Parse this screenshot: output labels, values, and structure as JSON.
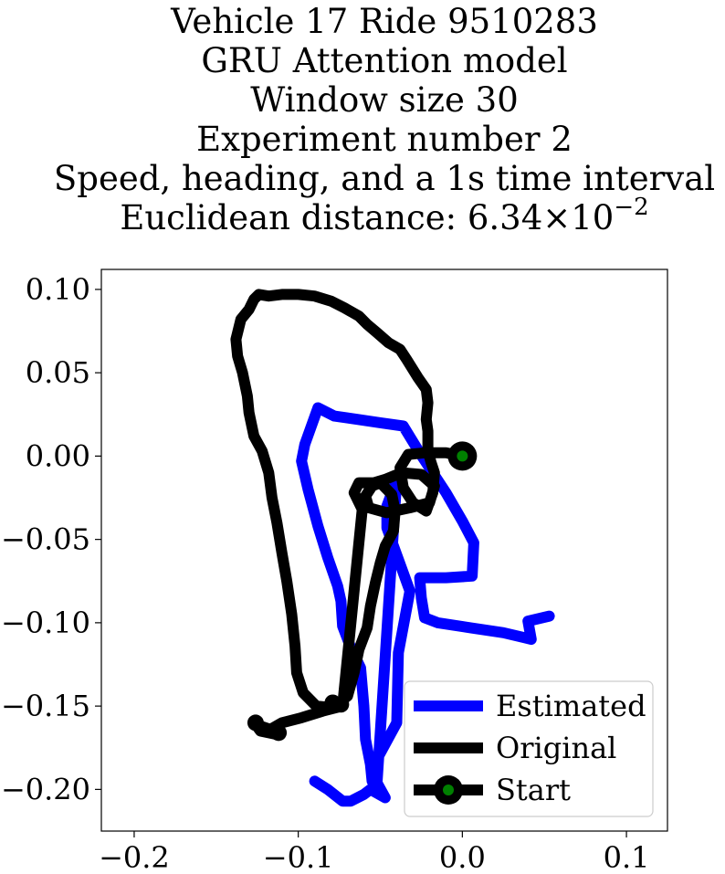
{
  "chart_data": {
    "type": "line",
    "title_lines": [
      "Vehicle 17 Ride 9510283",
      "GRU Attention model",
      "Window size 30",
      "Experiment number 2",
      "Speed, heading, and a 1s time interval"
    ],
    "title_last_prefix": "Euclidean distance: 6.34×10",
    "title_last_exponent": "−2",
    "xlim": [
      -0.22,
      0.125
    ],
    "ylim": [
      -0.225,
      0.112
    ],
    "x_ticks": [
      -0.2,
      -0.1,
      0.0,
      0.1
    ],
    "x_tick_labels": [
      "−0.2",
      "−0.1",
      "0.0",
      "0.1"
    ],
    "y_ticks": [
      0.1,
      0.05,
      0.0,
      -0.05,
      -0.1,
      -0.15,
      -0.2
    ],
    "y_tick_labels": [
      "0.10",
      "0.05",
      "0.00",
      "−0.05",
      "−0.10",
      "−0.15",
      "−0.20"
    ],
    "grid": false,
    "legend_position": "lower-right",
    "series": [
      {
        "name": "Estimated",
        "color": "#0000ff",
        "points": [
          [
            0.053,
            -0.096
          ],
          [
            0.04,
            -0.099
          ],
          [
            0.042,
            -0.11
          ],
          [
            0.038,
            -0.109
          ],
          [
            0.025,
            -0.106
          ],
          [
            0.005,
            -0.103
          ],
          [
            -0.015,
            -0.1
          ],
          [
            -0.023,
            -0.097
          ],
          [
            -0.025,
            -0.085
          ],
          [
            -0.026,
            -0.073
          ],
          [
            -0.01,
            -0.073
          ],
          [
            0.006,
            -0.072
          ],
          [
            0.007,
            -0.052
          ],
          [
            0.0,
            -0.039
          ],
          [
            -0.01,
            -0.022
          ],
          [
            -0.02,
            -0.007
          ],
          [
            -0.026,
            0.002
          ],
          [
            -0.036,
            0.018
          ],
          [
            -0.05,
            0.02
          ],
          [
            -0.064,
            0.022
          ],
          [
            -0.078,
            0.024
          ],
          [
            -0.088,
            0.029
          ],
          [
            -0.092,
            0.018
          ],
          [
            -0.096,
            0.007
          ],
          [
            -0.098,
            -0.003
          ],
          [
            -0.094,
            -0.02
          ],
          [
            -0.088,
            -0.042
          ],
          [
            -0.082,
            -0.061
          ],
          [
            -0.076,
            -0.078
          ],
          [
            -0.074,
            -0.087
          ],
          [
            -0.073,
            -0.102
          ],
          [
            -0.068,
            -0.115
          ],
          [
            -0.062,
            -0.127
          ],
          [
            -0.06,
            -0.15
          ],
          [
            -0.059,
            -0.17
          ],
          [
            -0.056,
            -0.185
          ],
          [
            -0.055,
            -0.195
          ],
          [
            -0.051,
            -0.18
          ],
          [
            -0.04,
            -0.16
          ],
          [
            -0.039,
            -0.118
          ],
          [
            -0.032,
            -0.081
          ],
          [
            -0.039,
            -0.062
          ],
          [
            -0.046,
            -0.043
          ],
          [
            -0.046,
            -0.03
          ],
          [
            -0.04,
            -0.014
          ],
          [
            -0.052,
            -0.196
          ],
          [
            -0.047,
            -0.205
          ],
          [
            -0.056,
            -0.2
          ],
          [
            -0.06,
            -0.203
          ],
          [
            -0.068,
            -0.207
          ],
          [
            -0.073,
            -0.207
          ],
          [
            -0.082,
            -0.2
          ],
          [
            -0.09,
            -0.195
          ]
        ]
      },
      {
        "name": "Original",
        "color": "#000000",
        "points": [
          [
            0.0,
            0.0
          ],
          [
            -0.01,
            0.002
          ],
          [
            -0.022,
            0.002
          ],
          [
            -0.033,
            0.001
          ],
          [
            -0.038,
            -0.007
          ],
          [
            -0.036,
            -0.019
          ],
          [
            -0.03,
            -0.028
          ],
          [
            -0.022,
            -0.033
          ],
          [
            -0.018,
            -0.022
          ],
          [
            -0.017,
            -0.01
          ],
          [
            -0.019,
            -0.004
          ],
          [
            -0.021,
            0.003
          ],
          [
            -0.021,
            0.015
          ],
          [
            -0.022,
            0.022
          ],
          [
            -0.021,
            0.032
          ],
          [
            -0.022,
            0.04
          ],
          [
            -0.027,
            0.047
          ],
          [
            -0.034,
            0.058
          ],
          [
            -0.038,
            0.064
          ],
          [
            -0.045,
            0.068
          ],
          [
            -0.052,
            0.074
          ],
          [
            -0.058,
            0.079
          ],
          [
            -0.063,
            0.084
          ],
          [
            -0.072,
            0.089
          ],
          [
            -0.08,
            0.093
          ],
          [
            -0.09,
            0.096
          ],
          [
            -0.1,
            0.097
          ],
          [
            -0.11,
            0.097
          ],
          [
            -0.118,
            0.096
          ],
          [
            -0.124,
            0.097
          ],
          [
            -0.127,
            0.094
          ],
          [
            -0.13,
            0.088
          ],
          [
            -0.135,
            0.082
          ],
          [
            -0.138,
            0.07
          ],
          [
            -0.137,
            0.06
          ],
          [
            -0.134,
            0.05
          ],
          [
            -0.131,
            0.036
          ],
          [
            -0.13,
            0.026
          ],
          [
            -0.127,
            0.012
          ],
          [
            -0.122,
            0.003
          ],
          [
            -0.118,
            -0.01
          ],
          [
            -0.116,
            -0.025
          ],
          [
            -0.113,
            -0.04
          ],
          [
            -0.11,
            -0.058
          ],
          [
            -0.107,
            -0.075
          ],
          [
            -0.104,
            -0.095
          ],
          [
            -0.102,
            -0.114
          ],
          [
            -0.101,
            -0.13
          ],
          [
            -0.097,
            -0.142
          ],
          [
            -0.089,
            -0.15
          ],
          [
            -0.079,
            -0.151
          ],
          [
            -0.07,
            -0.144
          ],
          [
            -0.066,
            -0.13
          ],
          [
            -0.063,
            -0.116
          ],
          [
            -0.058,
            -0.103
          ],
          [
            -0.056,
            -0.09
          ],
          [
            -0.053,
            -0.076
          ],
          [
            -0.05,
            -0.064
          ],
          [
            -0.047,
            -0.054
          ],
          [
            -0.042,
            -0.045
          ],
          [
            -0.041,
            -0.033
          ],
          [
            -0.043,
            -0.023
          ],
          [
            -0.05,
            -0.016
          ],
          [
            -0.055,
            -0.018
          ],
          [
            -0.059,
            -0.024
          ],
          [
            -0.057,
            -0.031
          ],
          [
            -0.046,
            -0.034
          ],
          [
            -0.032,
            -0.031
          ],
          [
            -0.02,
            -0.028
          ],
          [
            -0.017,
            -0.018
          ],
          [
            -0.025,
            -0.011
          ],
          [
            -0.037,
            -0.01
          ],
          [
            -0.047,
            -0.014
          ],
          [
            -0.054,
            -0.016
          ],
          [
            -0.063,
            -0.016
          ],
          [
            -0.066,
            -0.022
          ],
          [
            -0.061,
            -0.032
          ],
          [
            -0.073,
            -0.15
          ],
          [
            -0.085,
            -0.153
          ],
          [
            -0.098,
            -0.157
          ],
          [
            -0.11,
            -0.16
          ],
          [
            -0.117,
            -0.164
          ],
          [
            -0.126,
            -0.161
          ],
          [
            -0.123,
            -0.165
          ],
          [
            -0.113,
            -0.167
          ]
        ],
        "markers": [
          [
            -0.079,
            -0.148
          ],
          [
            -0.074,
            -0.149
          ],
          [
            -0.112,
            -0.166
          ],
          [
            -0.126,
            -0.16
          ]
        ]
      }
    ],
    "start_point": {
      "name": "Start",
      "x": 0.0,
      "y": 0.0,
      "outer_color": "#000000",
      "inner_color": "#008000"
    },
    "legend": [
      "Estimated",
      "Original",
      "Start"
    ]
  }
}
